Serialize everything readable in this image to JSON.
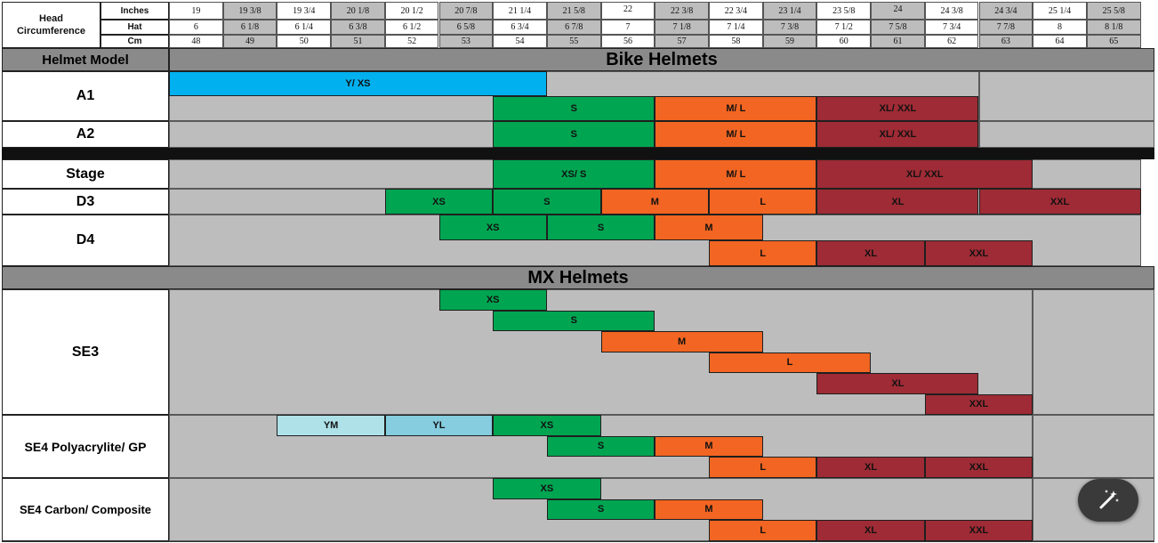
{
  "chart_data": {
    "type": "table",
    "header": {
      "row_label": "Head Circumference",
      "units": [
        "Inches",
        "Hat",
        "Cm"
      ],
      "inches": [
        "19",
        "19 3/8",
        "19 3/4",
        "20 1/8",
        "20 1/2",
        "20 7/8",
        "21 1/4",
        "21 5/8",
        "22",
        "22 3/8",
        "22 3/4",
        "23 1/4",
        "23 5/8",
        "24",
        "24 3/8",
        "24 3/4",
        "25 1/4",
        "25 5/8"
      ],
      "hat": [
        "6",
        "6 1/8",
        "6 1/4",
        "6 3/8",
        "6 1/2",
        "6 5/8",
        "6 3/4",
        "6 7/8",
        "7",
        "7 1/8",
        "7 1/4",
        "7 3/8",
        "7 1/2",
        "7 5/8",
        "7 3/4",
        "7 7/8",
        "8",
        "8 1/8"
      ],
      "cm": [
        "48",
        "49",
        "50",
        "51",
        "52",
        "53",
        "54",
        "55",
        "56",
        "57",
        "58",
        "59",
        "60",
        "61",
        "62",
        "63",
        "64",
        "65"
      ]
    },
    "model_header": "Helmet Model",
    "sections": [
      {
        "title": "Bike Helmets",
        "models": [
          {
            "name": "A1",
            "lanes": [
              [
                {
                  "label": "Y/ XS",
                  "start": 0,
                  "end": 7,
                  "color": "#00b0ef"
                }
              ],
              [
                {
                  "label": "S",
                  "start": 6,
                  "end": 9,
                  "color": "#00a551"
                },
                {
                  "label": "M/ L",
                  "start": 9,
                  "end": 12,
                  "color": "#f26522"
                },
                {
                  "label": "XL/ XXL",
                  "start": 12,
                  "end": 15,
                  "color": "#9e2b35"
                }
              ]
            ]
          },
          {
            "name": "A2",
            "lanes": [
              [
                {
                  "label": "S",
                  "start": 6,
                  "end": 9,
                  "color": "#00a551"
                },
                {
                  "label": "M/ L",
                  "start": 9,
                  "end": 12,
                  "color": "#f26522"
                },
                {
                  "label": "XL/ XXL",
                  "start": 12,
                  "end": 15,
                  "color": "#9e2b35"
                }
              ]
            ]
          },
          {
            "name": "Stage",
            "lanes": [
              [
                {
                  "label": "XS/ S",
                  "start": 6,
                  "end": 9,
                  "color": "#00a551"
                },
                {
                  "label": "M/ L",
                  "start": 9,
                  "end": 12,
                  "color": "#f26522"
                },
                {
                  "label": "XL/ XXL",
                  "start": 12,
                  "end": 16,
                  "color": "#9e2b35"
                }
              ]
            ]
          },
          {
            "name": "D3",
            "lanes": [
              [
                {
                  "label": "XS",
                  "start": 4,
                  "end": 6,
                  "color": "#00a551"
                },
                {
                  "label": "S",
                  "start": 6,
                  "end": 8,
                  "color": "#00a551"
                },
                {
                  "label": "M",
                  "start": 8,
                  "end": 10,
                  "color": "#f26522"
                },
                {
                  "label": "L",
                  "start": 10,
                  "end": 12,
                  "color": "#f26522"
                },
                {
                  "label": "XL",
                  "start": 12,
                  "end": 15,
                  "color": "#9e2b35"
                },
                {
                  "label": "XXL",
                  "start": 15,
                  "end": 18,
                  "color": "#9e2b35"
                }
              ]
            ]
          },
          {
            "name": "D4",
            "lanes": [
              [
                {
                  "label": "XS",
                  "start": 5,
                  "end": 7,
                  "color": "#00a551"
                },
                {
                  "label": "S",
                  "start": 7,
                  "end": 9,
                  "color": "#00a551"
                },
                {
                  "label": "M",
                  "start": 9,
                  "end": 11,
                  "color": "#f26522"
                }
              ],
              [
                {
                  "label": "L",
                  "start": 10,
                  "end": 12,
                  "color": "#f26522"
                },
                {
                  "label": "XL",
                  "start": 12,
                  "end": 14,
                  "color": "#9e2b35"
                },
                {
                  "label": "XXL",
                  "start": 14,
                  "end": 16,
                  "color": "#9e2b35"
                }
              ]
            ]
          }
        ]
      },
      {
        "title": "MX Helmets",
        "models": [
          {
            "name": "SE3",
            "lanes": [
              [
                {
                  "label": "XS",
                  "start": 5,
                  "end": 7,
                  "color": "#00a551"
                }
              ],
              [
                {
                  "label": "S",
                  "start": 6,
                  "end": 9,
                  "color": "#00a551"
                }
              ],
              [
                {
                  "label": "M",
                  "start": 8,
                  "end": 11,
                  "color": "#f26522"
                }
              ],
              [
                {
                  "label": "L",
                  "start": 10,
                  "end": 13,
                  "color": "#f26522"
                }
              ],
              [
                {
                  "label": "XL",
                  "start": 12,
                  "end": 15,
                  "color": "#9e2b35"
                }
              ],
              [
                {
                  "label": "XXL",
                  "start": 14,
                  "end": 16,
                  "color": "#9e2b35"
                }
              ]
            ]
          },
          {
            "name": "SE4 Polyacrylite/ GP",
            "lanes": [
              [
                {
                  "label": "YM",
                  "start": 2,
                  "end": 4,
                  "color": "#aee1e8"
                },
                {
                  "label": "YL",
                  "start": 4,
                  "end": 6,
                  "color": "#85cddf"
                },
                {
                  "label": "XS",
                  "start": 6,
                  "end": 8,
                  "color": "#00a551"
                }
              ],
              [
                {
                  "label": "S",
                  "start": 7,
                  "end": 9,
                  "color": "#00a551"
                },
                {
                  "label": "M",
                  "start": 9,
                  "end": 11,
                  "color": "#f26522"
                }
              ],
              [
                {
                  "label": "L",
                  "start": 10,
                  "end": 12,
                  "color": "#f26522"
                },
                {
                  "label": "XL",
                  "start": 12,
                  "end": 14,
                  "color": "#9e2b35"
                },
                {
                  "label": "XXL",
                  "start": 14,
                  "end": 16,
                  "color": "#9e2b35"
                }
              ]
            ]
          },
          {
            "name": "SE4 Carbon/ Composite",
            "lanes": [
              [
                {
                  "label": "XS",
                  "start": 6,
                  "end": 8,
                  "color": "#00a551"
                }
              ],
              [
                {
                  "label": "S",
                  "start": 7,
                  "end": 9,
                  "color": "#00a551"
                },
                {
                  "label": "M",
                  "start": 9,
                  "end": 11,
                  "color": "#f26522"
                }
              ],
              [
                {
                  "label": "L",
                  "start": 10,
                  "end": 12,
                  "color": "#f26522"
                },
                {
                  "label": "XL",
                  "start": 12,
                  "end": 14,
                  "color": "#9e2b35"
                },
                {
                  "label": "XXL",
                  "start": 14,
                  "end": 16,
                  "color": "#9e2b35"
                }
              ]
            ]
          }
        ]
      }
    ],
    "grey_extent": [
      {
        "model": "A1",
        "end": 15
      },
      {
        "model": "A2",
        "end": 15
      },
      {
        "model": "Stage",
        "end": 18
      },
      {
        "model": "D3",
        "end": 18
      },
      {
        "model": "D4",
        "end": 18
      },
      {
        "model": "SE3",
        "end": 16
      },
      {
        "model": "SE4 Polyacrylite/ GP",
        "end": 16
      },
      {
        "model": "SE4 Carbon/ Composite",
        "end": 16
      }
    ],
    "colors": {
      "grey": "#bdbdbd",
      "section_bar": "#8a8a8a",
      "highlight_column": "#bdbdbd"
    }
  },
  "overlay": {
    "icon": "magic-wand-icon"
  }
}
